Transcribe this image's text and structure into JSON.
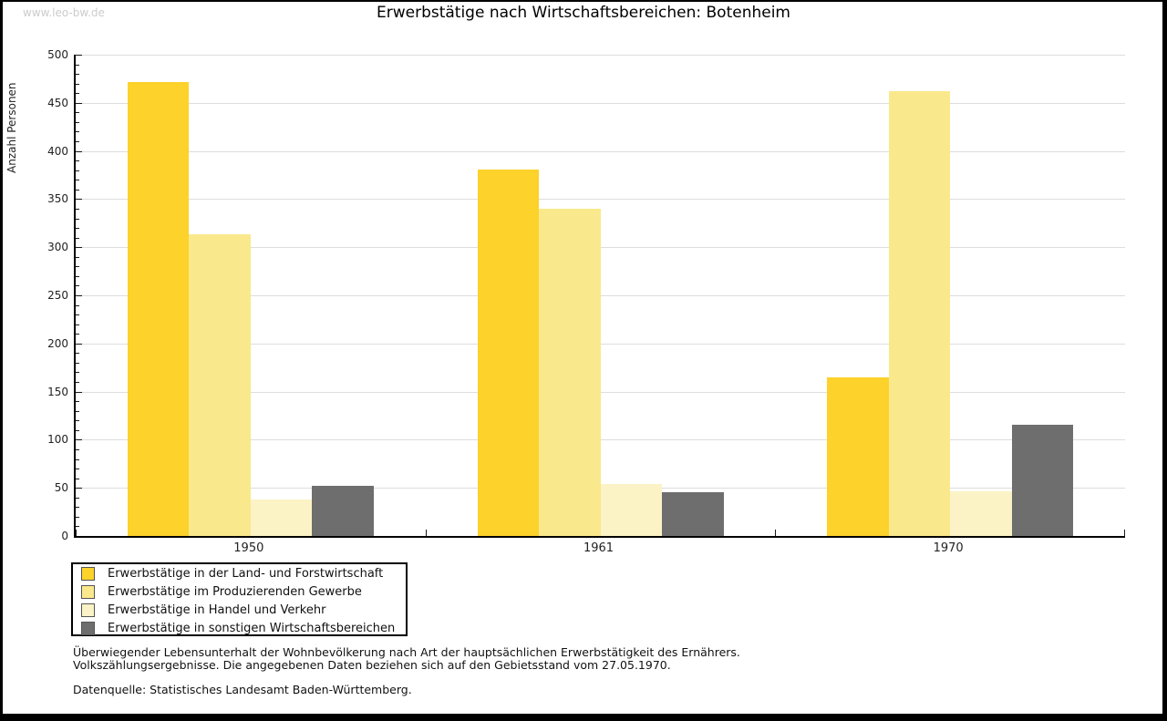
{
  "page": {
    "watermark": "www.leo-bw.de",
    "title": "Erwerbstätige nach Wirtschaftsbereichen: Botenheim"
  },
  "chart_data": {
    "type": "bar",
    "title": "Erwerbstätige nach Wirtschaftsbereichen: Botenheim",
    "categories": [
      "1950",
      "1961",
      "1970"
    ],
    "series": [
      {
        "name": "Erwerbstätige in der Land- und Forstwirtschaft",
        "color": "#FCD22B",
        "values": [
          472,
          381,
          165
        ]
      },
      {
        "name": "Erwerbstätige im Produzierenden Gewerbe",
        "color": "#FAE98C",
        "values": [
          313,
          340,
          462
        ]
      },
      {
        "name": "Erwerbstätige in Handel und Verkehr",
        "color": "#FBF3C6",
        "values": [
          38,
          54,
          46
        ]
      },
      {
        "name": "Erwerbstätige in sonstigen Wirtschaftsbereichen",
        "color": "#6E6E6E",
        "values": [
          52,
          45,
          116
        ]
      }
    ],
    "xlabel": "",
    "ylabel": "Anzahl Personen",
    "ylim": [
      0,
      500
    ],
    "ytick_step": 50,
    "minor_tick_step": 10,
    "grid": true,
    "gridline_color": "#DDDDDD",
    "legend_position": "bottom-left"
  },
  "footer": {
    "note_line1": "Überwiegender Lebensunterhalt der Wohnbevölkerung nach Art der hauptsächlichen Erwerbstätigkeit des Ernährers.",
    "note_line2": "Volkszählungsergebnisse. Die angegebenen Daten beziehen sich auf den Gebietsstand vom 27.05.1970.",
    "source": "Datenquelle: Statistisches Landesamt Baden-Württemberg."
  }
}
